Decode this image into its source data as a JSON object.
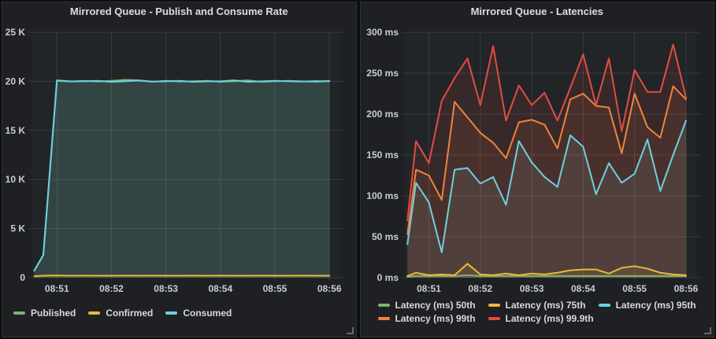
{
  "panels": [
    {
      "title": "Mirrored Queue - Publish and Consume Rate",
      "legend": [
        {
          "label": "Published",
          "color": "#7eb26d"
        },
        {
          "label": "Confirmed",
          "color": "#eab839"
        },
        {
          "label": "Consumed",
          "color": "#6ed0e0"
        }
      ]
    },
    {
      "title": "Mirrored Queue - Latencies",
      "legend": [
        {
          "label": "Latency (ms) 50th",
          "color": "#7eb26d"
        },
        {
          "label": "Latency (ms) 75th",
          "color": "#eab839"
        },
        {
          "label": "Latency (ms) 95th",
          "color": "#6ed0e0"
        },
        {
          "label": "Latency (ms) 99th",
          "color": "#ef843c"
        },
        {
          "label": "Latency (ms) 99.9th",
          "color": "#e24d42"
        }
      ]
    }
  ],
  "colors": {
    "plot_background": "#222528",
    "gridline": "rgba(216,222,227,0.12)",
    "tick_text": "#c9ced3"
  },
  "chart_data": [
    {
      "type": "line",
      "fill": true,
      "title": "Mirrored Queue - Publish and Consume Rate",
      "xlabel": "",
      "ylabel": "",
      "ylim": [
        0,
        25000
      ],
      "xlim": [
        32,
        372
      ],
      "x_seconds_since_08_50_00": [
        35,
        45,
        60,
        75,
        90,
        105,
        120,
        135,
        150,
        165,
        180,
        195,
        210,
        225,
        240,
        255,
        270,
        285,
        300,
        315,
        330,
        345,
        360
      ],
      "xticks": [
        {
          "v": 60,
          "label": "08:51"
        },
        {
          "v": 120,
          "label": "08:52"
        },
        {
          "v": 180,
          "label": "08:53"
        },
        {
          "v": 240,
          "label": "08:54"
        },
        {
          "v": 300,
          "label": "08:55"
        },
        {
          "v": 360,
          "label": "08:56"
        }
      ],
      "yticks": [
        {
          "v": 0,
          "label": "0"
        },
        {
          "v": 5000,
          "label": "5 K"
        },
        {
          "v": 10000,
          "label": "10 K"
        },
        {
          "v": 15000,
          "label": "15 K"
        },
        {
          "v": 20000,
          "label": "20 K"
        },
        {
          "v": 25000,
          "label": "25 K"
        }
      ],
      "legend_position": "bottom",
      "grid": true,
      "series": [
        {
          "name": "Published",
          "color": "#7eb26d",
          "values": [
            700,
            2300,
            20050,
            19980,
            20050,
            19980,
            20050,
            20150,
            20100,
            19950,
            20050,
            19980,
            20000,
            20050,
            19950,
            20000,
            20100,
            19950,
            20000,
            20050,
            20000,
            19950,
            20050
          ]
        },
        {
          "name": "Confirmed",
          "color": "#eab839",
          "values": [
            150,
            200,
            220,
            200,
            210,
            200,
            205,
            210,
            200,
            215,
            200,
            205,
            210,
            200,
            210,
            205,
            200,
            210,
            205,
            200,
            210,
            205,
            200
          ]
        },
        {
          "name": "Consumed",
          "color": "#6ed0e0",
          "values": [
            700,
            2300,
            20100,
            20000,
            20000,
            20050,
            19950,
            20000,
            20080,
            19980,
            20000,
            20050,
            19950,
            20000,
            20000,
            20100,
            19950,
            20000,
            20050,
            20000,
            19980,
            20020,
            20000
          ]
        }
      ]
    },
    {
      "type": "line",
      "fill": true,
      "title": "Mirrored Queue - Latencies",
      "xlabel": "",
      "ylabel": "",
      "ylim": [
        0,
        300
      ],
      "xlim": [
        32,
        372
      ],
      "x_seconds_since_08_50_00": [
        35,
        45,
        60,
        75,
        90,
        105,
        120,
        135,
        150,
        165,
        180,
        195,
        210,
        225,
        240,
        255,
        270,
        285,
        300,
        315,
        330,
        345,
        360
      ],
      "xticks": [
        {
          "v": 60,
          "label": "08:51"
        },
        {
          "v": 120,
          "label": "08:52"
        },
        {
          "v": 180,
          "label": "08:53"
        },
        {
          "v": 240,
          "label": "08:54"
        },
        {
          "v": 300,
          "label": "08:55"
        },
        {
          "v": 360,
          "label": "08:56"
        }
      ],
      "yticks": [
        {
          "v": 0,
          "label": "0 ms"
        },
        {
          "v": 50,
          "label": "50 ms"
        },
        {
          "v": 100,
          "label": "100 ms"
        },
        {
          "v": 150,
          "label": "150 ms"
        },
        {
          "v": 200,
          "label": "200 ms"
        },
        {
          "v": 250,
          "label": "250 ms"
        },
        {
          "v": 300,
          "label": "300 ms"
        }
      ],
      "legend_position": "bottom",
      "grid": true,
      "series": [
        {
          "name": "Latency (ms) 50th",
          "color": "#7eb26d",
          "values": [
            1,
            2,
            2,
            2,
            2,
            3,
            2,
            2,
            2,
            2,
            2,
            2,
            2,
            2,
            2,
            2,
            2,
            2,
            2,
            2,
            2,
            2,
            2
          ]
        },
        {
          "name": "Latency (ms) 75th",
          "color": "#eab839",
          "values": [
            2,
            6,
            3,
            4,
            3,
            17,
            4,
            3,
            5,
            3,
            5,
            4,
            6,
            9,
            10,
            10,
            5,
            12,
            14,
            11,
            6,
            4,
            3
          ]
        },
        {
          "name": "Latency (ms) 95th",
          "color": "#6ed0e0",
          "values": [
            41,
            116,
            92,
            31,
            132,
            134,
            115,
            123,
            89,
            167,
            141,
            123,
            111,
            174,
            160,
            102,
            140,
            116,
            127,
            169,
            106,
            150,
            192
          ]
        },
        {
          "name": "Latency (ms) 99th",
          "color": "#ef843c",
          "values": [
            53,
            132,
            125,
            95,
            215,
            196,
            177,
            165,
            146,
            190,
            193,
            187,
            158,
            218,
            225,
            210,
            208,
            152,
            225,
            184,
            171,
            234,
            218
          ]
        },
        {
          "name": "Latency (ms) 99.9th",
          "color": "#e24d42",
          "values": [
            70,
            167,
            140,
            216,
            244,
            268,
            211,
            283,
            192,
            235,
            211,
            226,
            192,
            232,
            273,
            211,
            268,
            179,
            254,
            227,
            227,
            285,
            220
          ]
        }
      ]
    }
  ]
}
